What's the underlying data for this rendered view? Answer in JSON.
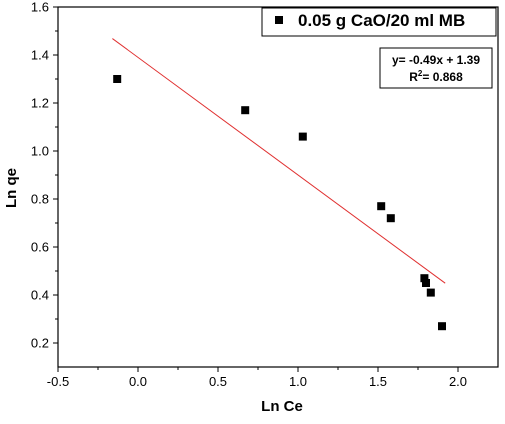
{
  "chart_data": {
    "type": "scatter",
    "xlabel": "Ln Ce",
    "ylabel": "Ln qe",
    "xlim": [
      -0.5,
      2.25
    ],
    "ylim": [
      0.1,
      1.6
    ],
    "x_ticks": [
      -0.5,
      0.0,
      0.5,
      1.0,
      1.5,
      2.0
    ],
    "x_tick_labels": [
      "-0.5",
      "0.0",
      "0.5",
      "1.0",
      "1.5",
      "2.0"
    ],
    "y_ticks": [
      0.2,
      0.4,
      0.6,
      0.8,
      1.0,
      1.2,
      1.4,
      1.6
    ],
    "y_tick_labels": [
      "0.2",
      "0.4",
      "0.6",
      "0.8",
      "1.0",
      "1.2",
      "1.4",
      "1.6"
    ],
    "grid": false,
    "legend_position": "top-right",
    "series": [
      {
        "name": "0.05 g CaO/20 ml MB",
        "marker": "square",
        "color": "#000000",
        "points": [
          {
            "x": -0.13,
            "y": 1.3
          },
          {
            "x": 0.67,
            "y": 1.17
          },
          {
            "x": 1.03,
            "y": 1.06
          },
          {
            "x": 1.52,
            "y": 0.77
          },
          {
            "x": 1.58,
            "y": 0.72
          },
          {
            "x": 1.79,
            "y": 0.47
          },
          {
            "x": 1.8,
            "y": 0.45
          },
          {
            "x": 1.83,
            "y": 0.41
          },
          {
            "x": 1.9,
            "y": 0.27
          }
        ]
      }
    ],
    "fit": {
      "color": "#e03030",
      "slope": -0.49,
      "intercept": 1.39,
      "x_range": [
        -0.16,
        1.92
      ],
      "equation": "y= -0.49x + 1.39",
      "r2_prefix": "R",
      "r2_sup": "2",
      "r2_value": "= 0.868"
    }
  }
}
